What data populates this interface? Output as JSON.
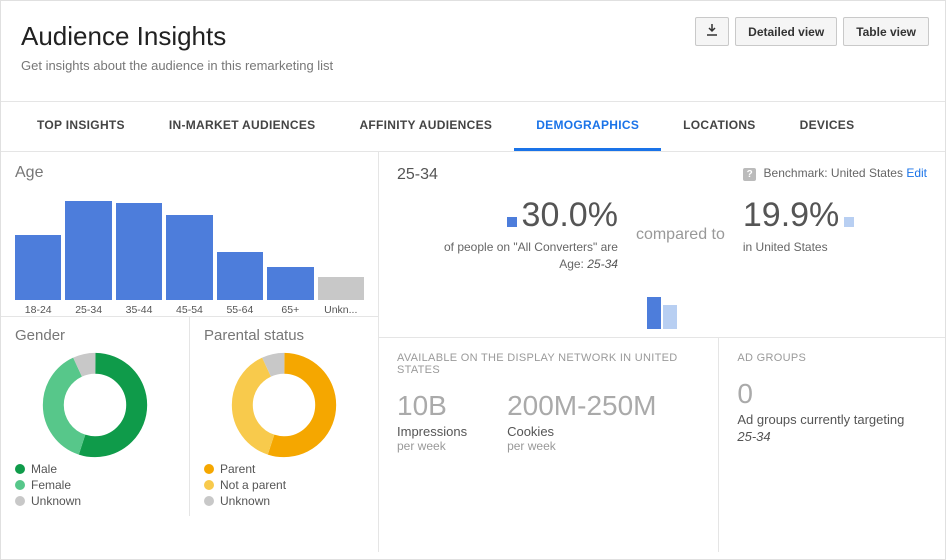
{
  "header": {
    "title": "Audience Insights",
    "subtitle": "Get insights about the audience in this remarketing list",
    "buttons": {
      "download": "⬇",
      "detailed": "Detailed view",
      "table": "Table view"
    }
  },
  "tabs": [
    "TOP INSIGHTS",
    "IN-MARKET AUDIENCES",
    "AFFINITY AUDIENCES",
    "DEMOGRAPHICS",
    "LOCATIONS",
    "DEVICES"
  ],
  "active_tab": 3,
  "age_chart": {
    "title": "Age",
    "type": "bar",
    "categories": [
      "18-24",
      "25-34",
      "35-44",
      "45-54",
      "55-64",
      "65+",
      "Unkn..."
    ],
    "values": [
      65,
      99,
      97,
      85,
      48,
      33,
      23
    ],
    "bar_color": "#4d7ddb",
    "unknown_color": "#c8c8c8",
    "max": 100
  },
  "gender": {
    "title": "Gender",
    "type": "donut",
    "segments": [
      {
        "label": "Male",
        "value": 55,
        "color": "#0f9b4a"
      },
      {
        "label": "Female",
        "value": 38,
        "color": "#57c78a"
      },
      {
        "label": "Unknown",
        "value": 7,
        "color": "#c8c8c8"
      }
    ]
  },
  "parental": {
    "title": "Parental status",
    "type": "donut",
    "segments": [
      {
        "label": "Parent",
        "value": 55,
        "color": "#f5a700"
      },
      {
        "label": "Not a parent",
        "value": 38,
        "color": "#f8ca4c"
      },
      {
        "label": "Unknown",
        "value": 7,
        "color": "#c8c8c8"
      }
    ]
  },
  "detail": {
    "selected": "25-34",
    "benchmark_label": "Benchmark:",
    "benchmark_value": "United States",
    "edit": "Edit",
    "left_pct": "30.0%",
    "left_sub1": "of people on \"All Converters\" are",
    "left_sub2_prefix": "Age:",
    "left_sub2_value": "25-34",
    "compared_to": "compared to",
    "right_pct": "19.9%",
    "right_sub": "in United States",
    "dist": {
      "a_color": "#4d7ddb",
      "b_color": "#b8cff2",
      "a_height": 32,
      "b_height": 24
    }
  },
  "network": {
    "heading": "AVAILABLE ON THE DISPLAY NETWORK IN UNITED STATES",
    "impressions": {
      "value": "10B",
      "label": "Impressions",
      "sub": "per week"
    },
    "cookies": {
      "value": "200M-250M",
      "label": "Cookies",
      "sub": "per week"
    }
  },
  "adgroups": {
    "heading": "AD GROUPS",
    "value": "0",
    "label": "Ad groups currently targeting",
    "target": "25-34"
  }
}
